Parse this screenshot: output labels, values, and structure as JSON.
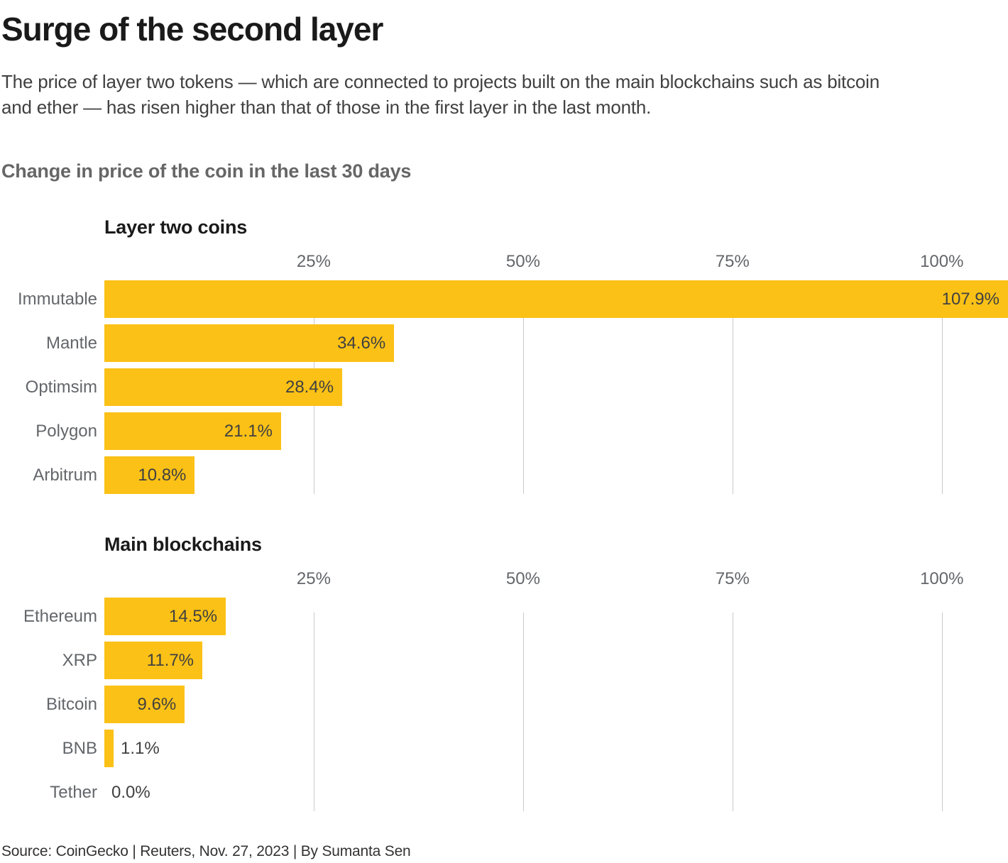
{
  "page": {
    "title": "Surge of the second layer",
    "subtitle_lines": [
      "The price of layer two tokens — which are connected to projects built on the main blockchains such as bitcoin",
      "and ether — has risen higher than that of those in the first layer in the last month."
    ],
    "kicker": "Change in price of the coin in the last 30 days",
    "source": "Source: CoinGecko | Reuters, Nov. 27, 2023 | By Sumanta Sen"
  },
  "colors": {
    "bar": "#fbc116",
    "gridline": "#c9c9c9",
    "title_text": "#1a1a1a",
    "label_text": "#63666a",
    "value_text": "#404040"
  },
  "chart_data": [
    {
      "type": "bar",
      "orientation": "horizontal",
      "title": "Layer two coins",
      "categories": [
        "Immutable",
        "Mantle",
        "Optimsim",
        "Polygon",
        "Arbitrum"
      ],
      "values": [
        107.9,
        34.6,
        28.4,
        21.1,
        10.8
      ],
      "value_labels": [
        "107.9%",
        "34.6%",
        "28.4%",
        "21.1%",
        "10.8%"
      ],
      "xlabel": "",
      "ylabel": "",
      "axis_max": 107.9,
      "axis_ticks": [
        {
          "value": 25,
          "label": "25%"
        },
        {
          "value": 50,
          "label": "50%"
        },
        {
          "value": 75,
          "label": "75%"
        },
        {
          "value": 100,
          "label": "100%"
        }
      ],
      "grid": true,
      "legend": false
    },
    {
      "type": "bar",
      "orientation": "horizontal",
      "title": "Main blockchains",
      "categories": [
        "Ethereum",
        "XRP",
        "Bitcoin",
        "BNB",
        "Tether"
      ],
      "values": [
        14.5,
        11.7,
        9.6,
        1.1,
        0.0
      ],
      "value_labels": [
        "14.5%",
        "11.7%",
        "9.6%",
        "1.1%",
        "0.0%"
      ],
      "xlabel": "",
      "ylabel": "",
      "axis_max": 107.9,
      "axis_ticks": [
        {
          "value": 25,
          "label": "25%"
        },
        {
          "value": 50,
          "label": "50%"
        },
        {
          "value": 75,
          "label": "75%"
        },
        {
          "value": 100,
          "label": "100%"
        }
      ],
      "grid": true,
      "legend": false
    }
  ]
}
